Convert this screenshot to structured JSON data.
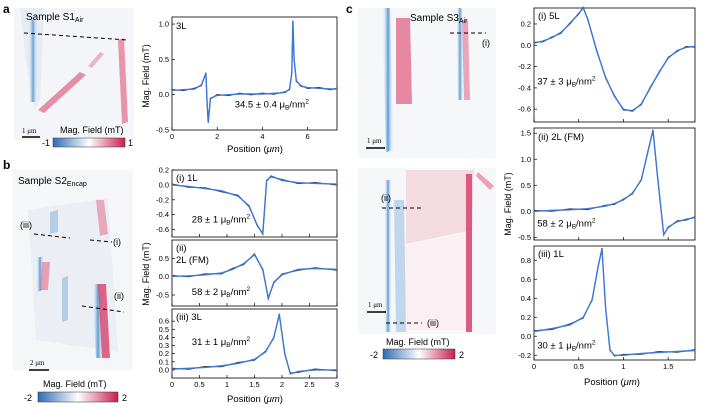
{
  "panel_letters": {
    "a": "a",
    "b": "b",
    "c": "c"
  },
  "maps": {
    "s1": {
      "title_main": "Sample S1",
      "title_sub": "Air",
      "scalebar": "1 μm",
      "colorbar_title": "Mag. Field (mT)",
      "cb_min": "-1",
      "cb_max": "1",
      "cut": ""
    },
    "s2": {
      "title_main": "Sample S2",
      "title_sub": "Encap",
      "scalebar": "2 μm",
      "colorbar_title": "Mag. Field (mT)",
      "cb_min": "-2",
      "cb_max": "2",
      "cuts": [
        "(iii)",
        "(i)",
        "(ii)"
      ]
    },
    "s3": {
      "title_main": "Sample S3",
      "title_sub": "Air",
      "scalebar_top": "1 μm",
      "scalebar_bottom": "1 μm",
      "cut_i": "(i)",
      "cut_ii": "(ii)",
      "cut_iii": "(iii)",
      "colorbar_title": "Mag. Field (mT)",
      "cb_min": "-2",
      "cb_max": "2"
    }
  },
  "axis_labels": {
    "ylabel": "Mag. Field (mT)",
    "xlabel_prefix": "Position (",
    "xlabel_unit": "μm",
    "xlabel_suffix": ")"
  },
  "moment_unit": {
    "mu": "μ",
    "sub": "B",
    "tail": "/nm",
    "sup": "2"
  },
  "colors": {
    "fit": "#3b78d8",
    "data": "#2b2b2b",
    "red": "#c81e4f",
    "blue": "#3d7fc0"
  },
  "chart_data": [
    {
      "id": "a",
      "type": "line",
      "title": "3L",
      "moment_prefix": "34.5 ± 0.4 ",
      "x": [
        0,
        0.5,
        1.0,
        1.3,
        1.5,
        1.55,
        1.6,
        1.7,
        2.0,
        2.5,
        3.0,
        3.5,
        4.0,
        4.5,
        5.0,
        5.2,
        5.3,
        5.35,
        5.4,
        5.5,
        5.7,
        6.0,
        6.5,
        7.0,
        7.3
      ],
      "series": [
        {
          "name": "fit",
          "values": [
            0.06,
            0.07,
            0.08,
            0.14,
            0.3,
            -0.08,
            -0.4,
            -0.05,
            -0.01,
            0.0,
            0.01,
            0.01,
            0.01,
            0.02,
            0.03,
            0.08,
            0.3,
            1.05,
            0.5,
            0.2,
            0.12,
            0.1,
            0.09,
            0.08,
            0.08
          ]
        }
      ],
      "xlim": [
        0,
        7.3
      ],
      "ylim": [
        -0.5,
        1.1
      ],
      "xticks": [
        0,
        2,
        4,
        6
      ],
      "yticks": [
        -0.5,
        0.0,
        0.5,
        1.0
      ],
      "ytick_labels": [
        "-0.5",
        "0.0",
        "0.5",
        "1.0"
      ]
    },
    {
      "id": "b_i",
      "type": "line",
      "title": "(i) 1L",
      "moment_prefix": "28 ± 1 ",
      "x": [
        0,
        0.3,
        0.6,
        0.9,
        1.2,
        1.4,
        1.55,
        1.65,
        1.72,
        1.8,
        2.0,
        2.3,
        2.6,
        3.0
      ],
      "series": [
        {
          "name": "fit",
          "values": [
            0.0,
            -0.02,
            -0.05,
            -0.08,
            -0.15,
            -0.28,
            -0.55,
            -0.65,
            0.05,
            0.12,
            0.06,
            0.03,
            0.02,
            0.01
          ]
        }
      ],
      "xlim": [
        0,
        3
      ],
      "ylim": [
        -0.7,
        0.2
      ],
      "xticks": [
        0,
        0.5,
        1,
        1.5,
        2,
        2.5,
        3
      ],
      "yticks": [
        0.2,
        0.0,
        -0.2,
        -0.4,
        -0.6
      ],
      "ytick_labels": [
        "0.2",
        "0.0",
        "-0.2",
        "-0.4",
        "-0.6"
      ]
    },
    {
      "id": "b_ii",
      "type": "line",
      "title": "(ii)",
      "title2": "2L (FM)",
      "moment_prefix": "58 ± 2 ",
      "x": [
        0,
        0.3,
        0.6,
        0.9,
        1.1,
        1.3,
        1.5,
        1.65,
        1.75,
        1.85,
        2.0,
        2.3,
        2.6,
        3.0
      ],
      "series": [
        {
          "name": "fit",
          "values": [
            0.01,
            0.02,
            0.05,
            0.1,
            0.2,
            0.35,
            0.6,
            0.2,
            -0.6,
            -0.15,
            0.05,
            0.2,
            0.22,
            0.2
          ]
        }
      ],
      "xlim": [
        0,
        3
      ],
      "ylim": [
        -0.8,
        1.0
      ],
      "xticks": [
        0,
        0.5,
        1,
        1.5,
        2,
        2.5,
        3
      ],
      "yticks": [
        0.5,
        0.0,
        -0.5
      ],
      "ytick_labels": [
        "0.5",
        "0.0",
        "-0.5"
      ]
    },
    {
      "id": "b_iii",
      "type": "line",
      "title": "(iii) 3L",
      "moment_prefix": "31 ± 1 ",
      "x": [
        0,
        0.3,
        0.6,
        0.9,
        1.2,
        1.5,
        1.7,
        1.85,
        1.95,
        2.05,
        2.15,
        2.3,
        2.6,
        3.0
      ],
      "series": [
        {
          "name": "fit",
          "values": [
            0.01,
            0.02,
            0.03,
            0.05,
            0.08,
            0.13,
            0.22,
            0.4,
            0.68,
            0.2,
            -0.05,
            -0.02,
            0.0,
            0.0
          ]
        }
      ],
      "xlim": [
        0,
        3
      ],
      "ylim": [
        -0.1,
        0.75
      ],
      "xticks": [
        0,
        0.5,
        1,
        1.5,
        2,
        2.5,
        3
      ],
      "yticks": [
        0.6,
        0.5,
        0.4,
        0.3,
        0.2,
        0.1,
        0.0
      ],
      "ytick_labels": [
        "0.6",
        "0.5",
        "0.4",
        "0.3",
        "0.2",
        "0.1",
        "0.0"
      ],
      "xtick_labels": [
        "0",
        "0.5",
        "1",
        "1.5",
        "2",
        "2.5",
        "3"
      ]
    },
    {
      "id": "c_i",
      "type": "line",
      "title": "(i) 5L",
      "moment_prefix": "37 ± 3 ",
      "x": [
        0,
        0.1,
        0.2,
        0.3,
        0.4,
        0.5,
        0.55,
        0.6,
        0.7,
        0.8,
        0.9,
        1.0,
        1.1,
        1.2,
        1.3,
        1.4,
        1.5,
        1.6,
        1.7,
        1.8
      ],
      "series": [
        {
          "name": "fit",
          "values": [
            0.02,
            0.04,
            0.07,
            0.12,
            0.2,
            0.3,
            0.35,
            0.25,
            -0.05,
            -0.3,
            -0.48,
            -0.6,
            -0.62,
            -0.55,
            -0.4,
            -0.25,
            -0.12,
            -0.05,
            -0.02,
            -0.01
          ]
        }
      ],
      "xlim": [
        0,
        1.8
      ],
      "ylim": [
        -0.72,
        0.35
      ],
      "xticks": [
        0,
        0.5,
        1,
        1.5
      ],
      "yticks": [
        0.2,
        0.0,
        -0.2,
        -0.4,
        -0.6
      ],
      "ytick_labels": [
        "0.2",
        "0.0",
        "-0.2",
        "-0.4",
        "-0.6"
      ]
    },
    {
      "id": "c_ii",
      "type": "line",
      "title": "(ii) 2L (FM)",
      "moment_prefix": "58 ± 2 ",
      "x": [
        0,
        0.2,
        0.4,
        0.6,
        0.8,
        0.9,
        1.0,
        1.1,
        1.2,
        1.28,
        1.33,
        1.38,
        1.45,
        1.5,
        1.6,
        1.7,
        1.8
      ],
      "series": [
        {
          "name": "fit",
          "values": [
            0.0,
            0.02,
            0.03,
            0.05,
            0.1,
            0.15,
            0.22,
            0.35,
            0.6,
            1.2,
            1.55,
            0.7,
            -0.45,
            -0.3,
            -0.2,
            -0.15,
            -0.12
          ]
        }
      ],
      "xlim": [
        0,
        1.8
      ],
      "ylim": [
        -0.55,
        1.6
      ],
      "xticks": [
        0,
        0.5,
        1,
        1.5
      ],
      "yticks": [
        1.5,
        1.0,
        0.5,
        0.0,
        -0.5
      ],
      "ytick_labels": [
        "1.5",
        "1.0",
        "0.5",
        "0.0",
        "-0.5"
      ]
    },
    {
      "id": "c_iii",
      "type": "line",
      "title": "(iii) 1L",
      "moment_prefix": "30 ± 1 ",
      "x": [
        0,
        0.2,
        0.4,
        0.55,
        0.65,
        0.72,
        0.76,
        0.8,
        0.85,
        0.9,
        1.0,
        1.2,
        1.4,
        1.6,
        1.8
      ],
      "series": [
        {
          "name": "fit",
          "values": [
            0.05,
            0.08,
            0.12,
            0.2,
            0.38,
            0.75,
            0.92,
            0.3,
            -0.15,
            -0.2,
            -0.2,
            -0.18,
            -0.17,
            -0.16,
            -0.15
          ]
        }
      ],
      "xlim": [
        0,
        1.8
      ],
      "ylim": [
        -0.25,
        0.95
      ],
      "xticks": [
        0,
        0.5,
        1,
        1.5
      ],
      "yticks": [
        0.8,
        0.6,
        0.4,
        0.2,
        0.0,
        -0.2
      ],
      "ytick_labels": [
        "0.8",
        "0.6",
        "0.4",
        "0.2",
        "0.0",
        "-0.2"
      ],
      "xtick_labels": [
        "0",
        "0.5",
        "1",
        "1.5"
      ]
    }
  ]
}
